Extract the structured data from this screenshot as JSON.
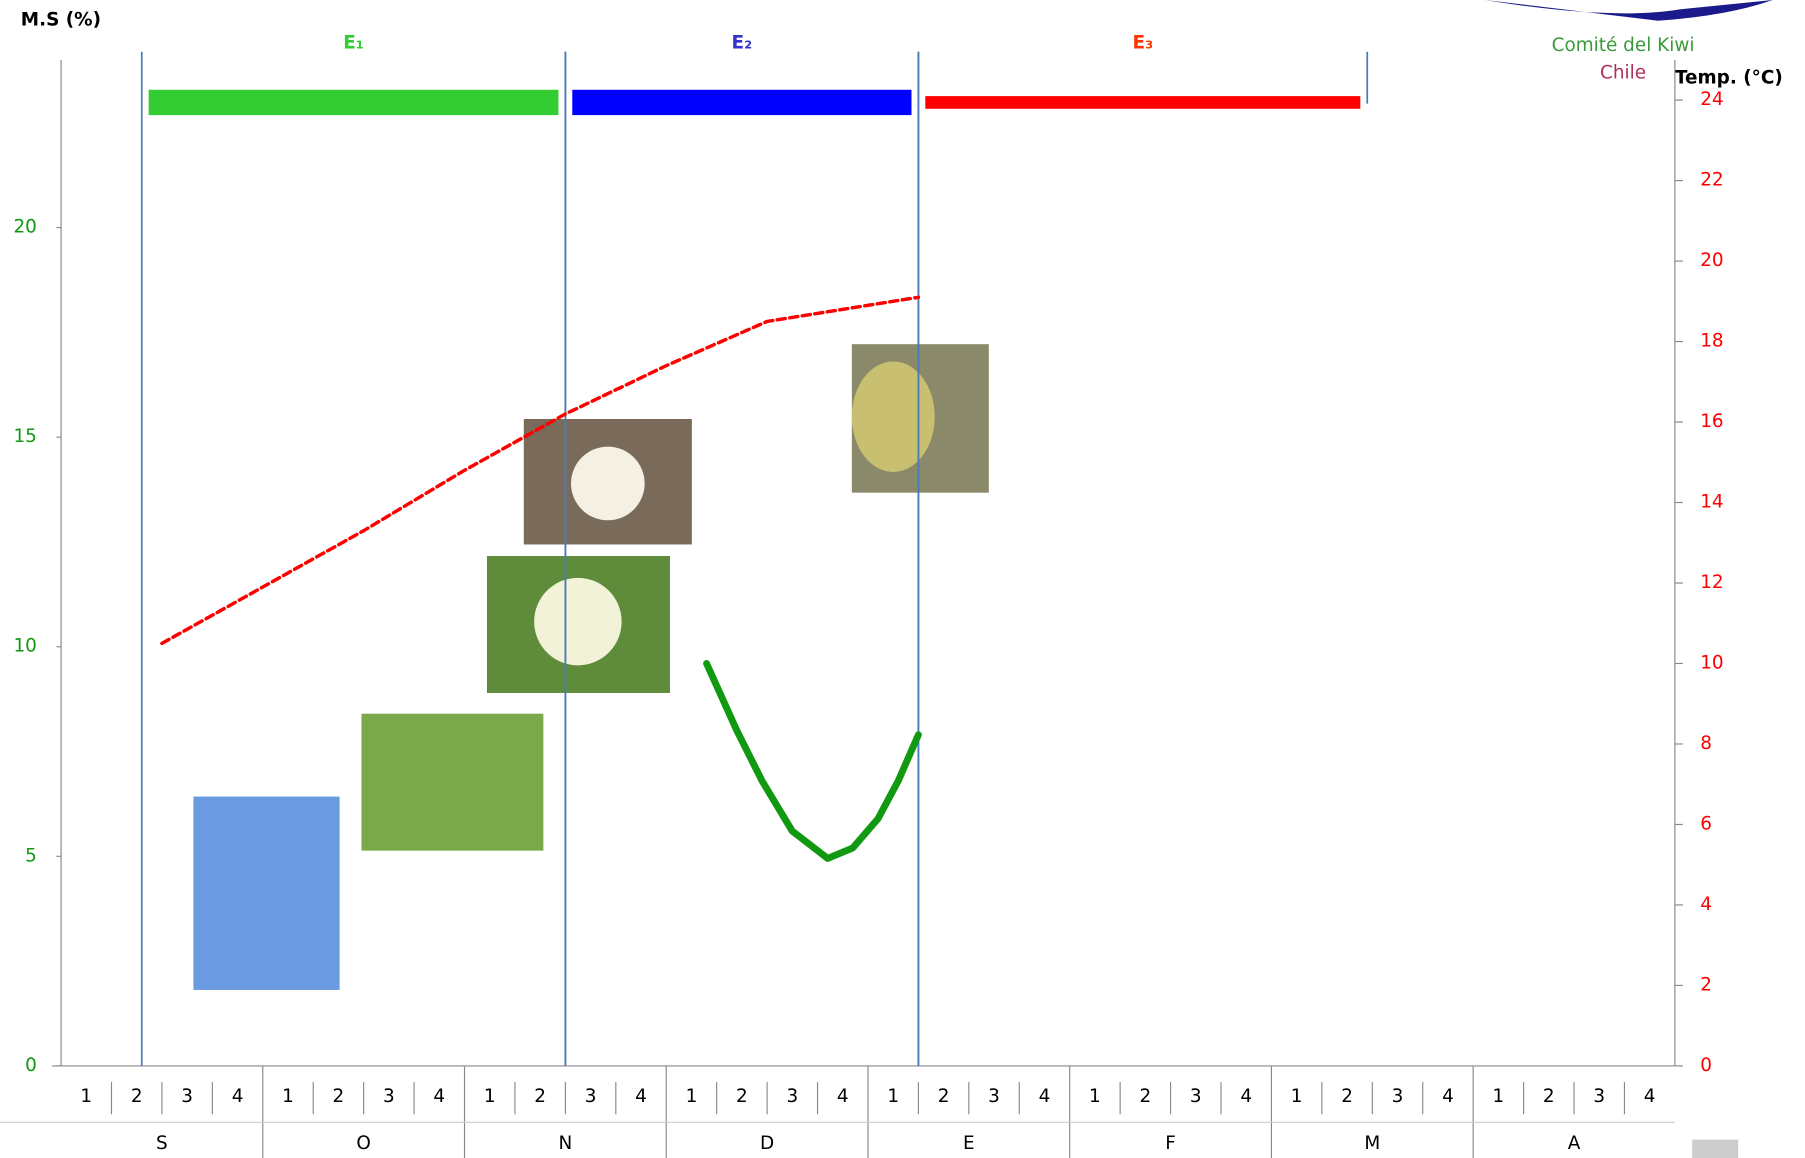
{
  "chart_data": {
    "type": "line",
    "y_label": "M.S (%)",
    "y2_label": "Temp. (°C)",
    "ylim": [
      0,
      24
    ],
    "yticks": [
      0,
      5,
      10,
      15,
      20
    ],
    "y2lim": [
      0,
      25
    ],
    "y2ticks": [
      0,
      2,
      4,
      6,
      8,
      10,
      12,
      14,
      16,
      18,
      20,
      22,
      24
    ],
    "xlim": [
      0,
      32
    ],
    "weeks": [
      "1",
      "2",
      "3",
      "4",
      "1",
      "2",
      "3",
      "4",
      "1",
      "2",
      "3",
      "4",
      "1",
      "2",
      "3",
      "4",
      "1",
      "2",
      "3",
      "4",
      "1",
      "2",
      "3",
      "4",
      "1",
      "2",
      "3",
      "4",
      "1",
      "2",
      "3",
      "4"
    ],
    "months": [
      "S",
      "O",
      "N",
      "D",
      "E",
      "F",
      "M",
      "A"
    ],
    "stages": [
      {
        "name": "E₁",
        "start": 1.6,
        "end": 10,
        "color": "#33cc33",
        "label_color": "#33cc33"
      },
      {
        "name": "E₂",
        "start": 10,
        "end": 17,
        "color": "#0000ff",
        "label_color": "#3333cc"
      },
      {
        "name": "E₃",
        "start": 17,
        "end": 25.9,
        "color": "#ff0000",
        "label_color": "#ff3300"
      }
    ],
    "series": [
      {
        "color": "#ff0000",
        "axis": "y2",
        "dashed": true,
        "x": [
          2,
          4,
          6,
          8,
          10,
          12,
          14,
          17
        ],
        "values": [
          10.5,
          11.9,
          13.3,
          14.8,
          16.2,
          17.4,
          18.5,
          19.1
        ]
      },
      {
        "color": "#119911",
        "axis": "y",
        "x": [
          12.8,
          13.4,
          13.9,
          14.5,
          15.2,
          15.7,
          16.2,
          16.6,
          17
        ],
        "values": [
          9.6,
          8.0,
          6.8,
          5.6,
          4.95,
          5.2,
          5.9,
          6.8,
          7.9
        ]
      }
    ],
    "logo": {
      "line1": "Comité del Kiwi",
      "line2": "Chile"
    }
  }
}
